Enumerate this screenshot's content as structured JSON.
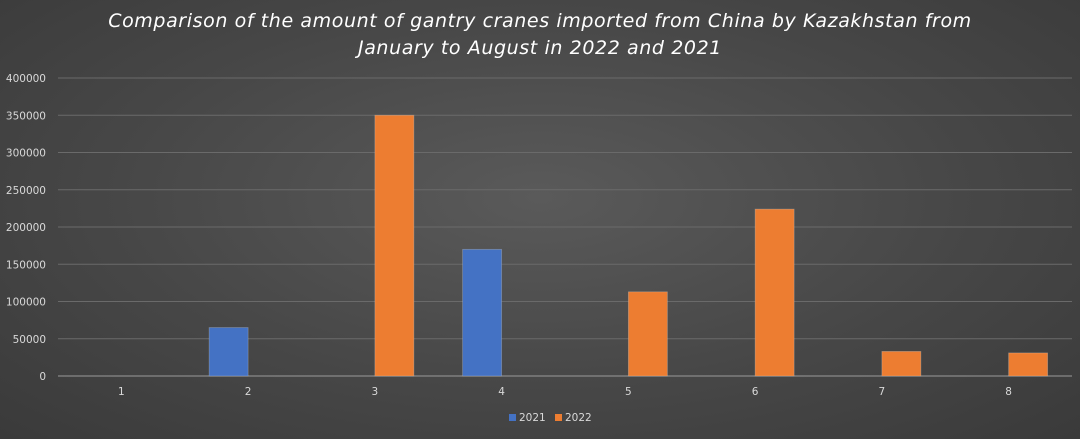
{
  "chart_data": {
    "type": "bar",
    "title": "Comparison of the amount of gantry cranes imported from China by Kazakhstan from January to August in 2022 and 2021",
    "categories": [
      "1",
      "2",
      "3",
      "4",
      "5",
      "6",
      "7",
      "8"
    ],
    "series": [
      {
        "name": "2021",
        "values": [
          0,
          65000,
          0,
          170000,
          0,
          0,
          0,
          0
        ],
        "color": "#4472c4"
      },
      {
        "name": "2022",
        "values": [
          0,
          0,
          350000,
          0,
          113000,
          224000,
          33000,
          31000
        ],
        "color": "#ed7d31"
      }
    ],
    "yticks": [
      "0",
      "50000",
      "100000",
      "150000",
      "200000",
      "250000",
      "300000",
      "350000",
      "400000"
    ],
    "ylim": [
      0,
      400000
    ],
    "grid": true,
    "legend": "bottom"
  }
}
